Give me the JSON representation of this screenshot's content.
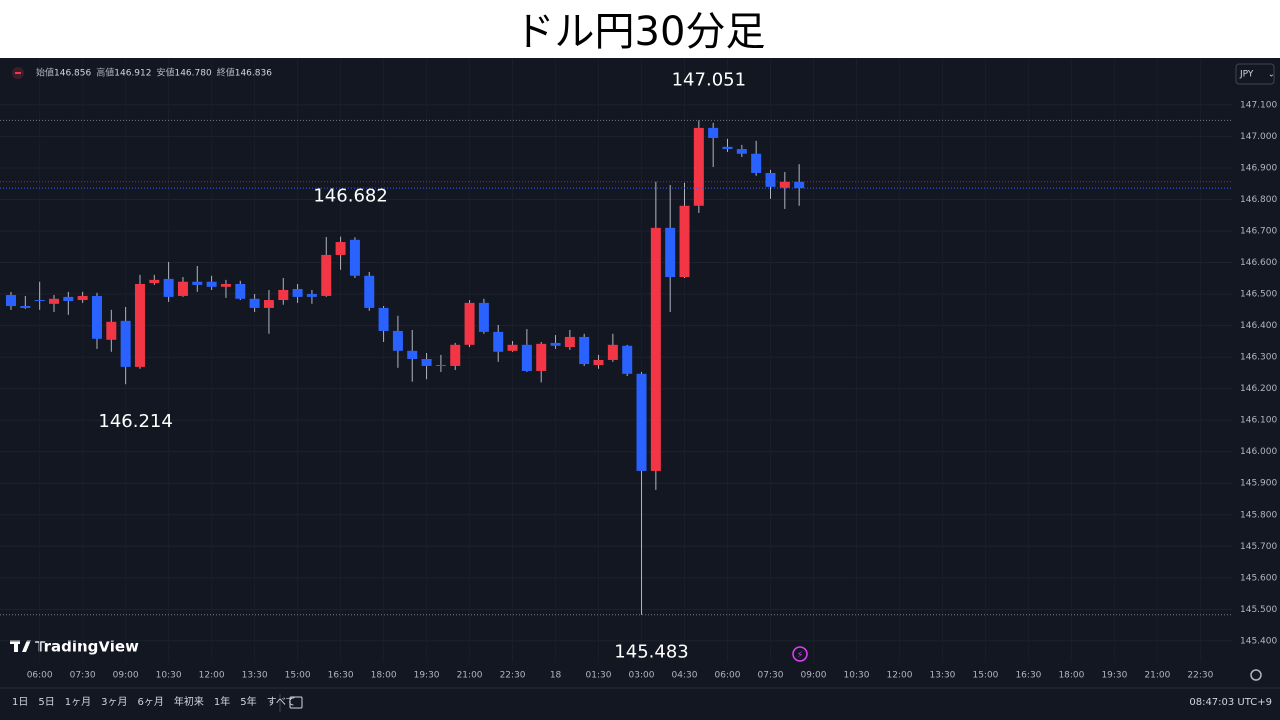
{
  "chart_data": {
    "type": "candlestick",
    "title": "ドル円30分足",
    "currency_button": "JPY",
    "ohlc_legend": {
      "labels": [
        "始値",
        "高値",
        "安値",
        "終値"
      ],
      "values": [
        "146.856",
        "146.912",
        "146.780",
        "146.836"
      ]
    },
    "categories": [
      null,
      null,
      "06:00",
      null,
      null,
      "07:30",
      null,
      null,
      "09:00",
      null,
      null,
      "10:30",
      null,
      null,
      "12:00",
      null,
      null,
      "13:30",
      null,
      null,
      "15:00",
      null,
      null,
      "16:30",
      null,
      null,
      "18:00",
      null,
      null,
      "19:30",
      null,
      null,
      "21:00",
      null,
      null,
      "22:30",
      null,
      null,
      "18",
      null,
      null,
      "01:30",
      null,
      null,
      "03:00",
      null,
      null,
      "04:30",
      null,
      null,
      "06:00",
      null,
      null,
      "07:30",
      null,
      null,
      "09:00",
      null,
      null,
      "10:30",
      null,
      null,
      "12:00",
      null,
      null,
      "13:30",
      null,
      null,
      "15:00",
      null,
      null,
      "16:30",
      null,
      null,
      "18:00",
      null,
      null,
      "19:30",
      null,
      null,
      "21:00",
      null,
      null,
      "22:30",
      null,
      null
    ],
    "open": [
      146.497,
      146.462,
      146.481,
      146.469,
      146.491,
      146.481,
      146.494,
      146.355,
      146.415,
      146.269,
      146.535,
      146.548,
      146.494,
      146.539,
      146.539,
      146.523,
      146.532,
      146.485,
      146.456,
      146.481,
      146.516,
      146.5,
      146.494,
      146.624,
      146.672,
      146.558,
      146.456,
      146.383,
      146.32,
      146.294,
      146.275,
      146.272,
      146.339,
      146.472,
      146.38,
      146.32,
      146.339,
      146.256,
      146.345,
      146.332,
      146.364,
      146.275,
      146.291,
      146.336,
      146.247,
      145.939,
      146.71,
      146.554,
      146.78,
      147.027,
      146.967,
      146.96,
      146.945,
      146.884,
      146.837,
      146.856,
      null,
      null,
      null,
      null,
      null,
      null,
      null,
      null,
      null,
      null,
      null,
      null,
      null,
      null,
      null,
      null,
      null,
      null,
      null,
      null,
      null,
      null,
      null,
      null,
      null,
      null,
      null,
      null,
      null,
      null
    ],
    "high": [
      146.507,
      146.494,
      146.539,
      146.497,
      146.507,
      146.507,
      146.504,
      146.45,
      146.459,
      146.561,
      146.561,
      146.602,
      146.554,
      146.589,
      146.558,
      146.545,
      146.542,
      146.5,
      146.513,
      146.551,
      146.532,
      146.513,
      146.681,
      146.682,
      146.68,
      146.57,
      146.462,
      146.431,
      146.386,
      146.313,
      146.307,
      146.345,
      146.481,
      146.485,
      146.402,
      146.351,
      146.389,
      146.348,
      146.37,
      146.386,
      146.374,
      146.307,
      146.374,
      146.339,
      146.253,
      146.856,
      146.846,
      146.853,
      147.051,
      147.043,
      146.992,
      146.973,
      146.986,
      146.894,
      146.887,
      146.912,
      null,
      null,
      null,
      null,
      null,
      null,
      null,
      null,
      null,
      null,
      null,
      null,
      null,
      null,
      null,
      null,
      null,
      null,
      null,
      null,
      null,
      null,
      null,
      null,
      null,
      null,
      null,
      null,
      null,
      null
    ],
    "low": [
      146.45,
      146.453,
      146.45,
      146.443,
      146.434,
      146.472,
      146.326,
      146.317,
      146.214,
      146.263,
      146.529,
      146.475,
      146.491,
      146.507,
      146.513,
      146.488,
      146.481,
      146.443,
      146.374,
      146.466,
      146.472,
      146.469,
      146.491,
      146.577,
      146.551,
      146.447,
      146.348,
      146.266,
      146.222,
      146.23,
      146.253,
      146.259,
      146.332,
      146.374,
      146.285,
      146.317,
      146.253,
      146.22,
      146.326,
      146.323,
      146.272,
      146.263,
      146.285,
      146.24,
      145.483,
      145.879,
      146.443,
      146.551,
      146.757,
      146.903,
      146.951,
      146.935,
      146.875,
      146.802,
      146.77,
      146.78,
      null,
      null,
      null,
      null,
      null,
      null,
      null,
      null,
      null,
      null,
      null,
      null,
      null,
      null,
      null,
      null,
      null,
      null,
      null,
      null,
      null,
      null,
      null,
      null,
      null,
      null,
      null,
      null,
      null,
      null
    ],
    "close": [
      146.462,
      146.456,
      146.48,
      146.485,
      146.478,
      146.494,
      146.358,
      146.412,
      146.269,
      146.532,
      146.545,
      146.491,
      146.539,
      146.529,
      146.523,
      146.532,
      146.485,
      146.456,
      146.481,
      146.513,
      146.491,
      146.491,
      146.624,
      146.665,
      146.558,
      146.456,
      146.383,
      146.32,
      146.294,
      146.272,
      146.272,
      146.339,
      146.472,
      146.38,
      146.317,
      146.339,
      146.256,
      146.342,
      146.336,
      146.364,
      146.278,
      146.291,
      146.339,
      146.247,
      145.939,
      146.71,
      146.554,
      146.78,
      147.027,
      146.995,
      146.96,
      146.945,
      146.884,
      146.84,
      146.856,
      146.836,
      null,
      null,
      null,
      null,
      null,
      null,
      null,
      null,
      null,
      null,
      null,
      null,
      null,
      null,
      null,
      null,
      null,
      null,
      null,
      null,
      null,
      null,
      null,
      null,
      null,
      null,
      null,
      null,
      null,
      null
    ],
    "up_color": "#f23645",
    "down_color": "#2962ff",
    "price_annotations": [
      147.051,
      146.682,
      146.214,
      145.483
    ],
    "ylim": [
      145.333,
      147.236
    ],
    "yticks": [
      {
        "value": 145.4,
        "label": "145.400"
      },
      {
        "value": 145.5,
        "label": "145.500"
      },
      {
        "value": 145.6,
        "label": "145.600"
      },
      {
        "value": 145.7,
        "label": "145.700"
      },
      {
        "value": 145.8,
        "label": "145.800"
      },
      {
        "value": 145.9,
        "label": "145.900"
      },
      {
        "value": 146.0,
        "label": "146.000"
      },
      {
        "value": 146.1,
        "label": "146.100"
      },
      {
        "value": 146.2,
        "label": "146.200"
      },
      {
        "value": 146.3,
        "label": "146.300"
      },
      {
        "value": 146.4,
        "label": "146.400"
      },
      {
        "value": 146.5,
        "label": "146.500"
      },
      {
        "value": 146.6,
        "label": "146.600"
      },
      {
        "value": 146.7,
        "label": "146.700"
      },
      {
        "value": 146.8,
        "label": "146.800"
      },
      {
        "value": 146.9,
        "label": "146.900"
      },
      {
        "value": 147.0,
        "label": "147.000"
      },
      {
        "value": 147.1,
        "label": "147.100"
      }
    ],
    "grid": true,
    "watermark": "TradingView",
    "range_buttons": [
      "1日",
      "5日",
      "1ヶ月",
      "3ヶ月",
      "6ヶ月",
      "年初来",
      "1年",
      "5年",
      "すべて"
    ],
    "clock": "08:47:03 UTC+9"
  }
}
